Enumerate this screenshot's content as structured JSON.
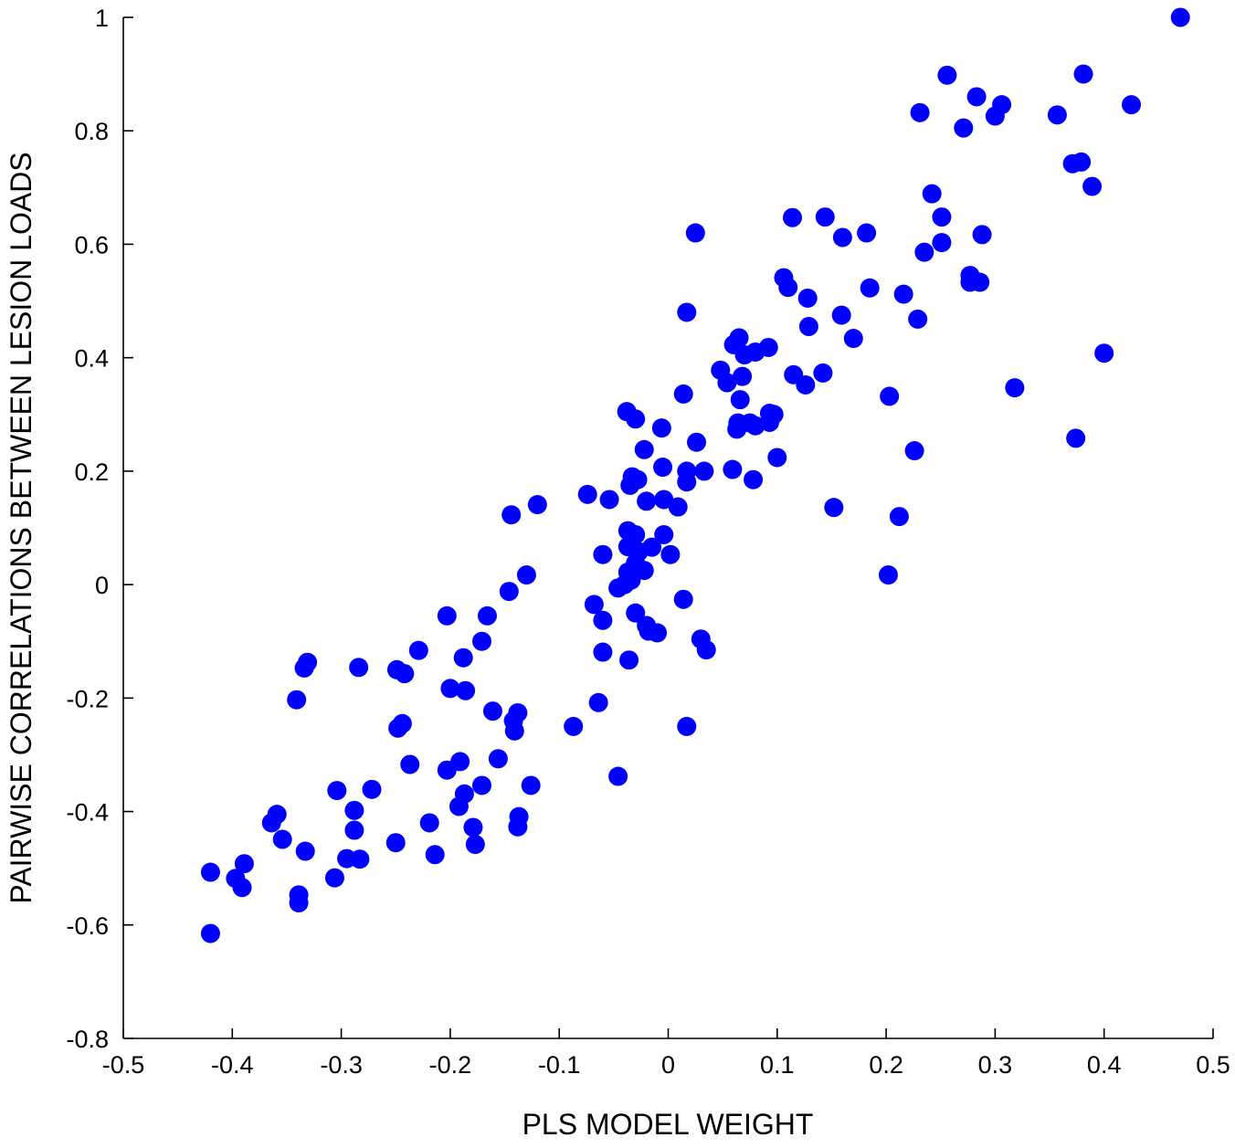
{
  "chart_data": {
    "type": "scatter",
    "xlabel": "PLS MODEL WEIGHT",
    "ylabel": "PAIRWISE CORRELATIONS BETWEEN LESION LOADS",
    "xlim": [
      -0.5,
      0.5
    ],
    "ylim": [
      -0.8,
      1
    ],
    "xticks": [
      -0.5,
      -0.4,
      -0.3,
      -0.2,
      -0.1,
      0,
      0.1,
      0.2,
      0.3,
      0.4,
      0.5
    ],
    "xtick_labels": [
      "-0.5",
      "-0.4",
      "-0.3",
      "-0.2",
      "-0.1",
      "0",
      "0.1",
      "0.2",
      "0.3",
      "0.4",
      "0.5"
    ],
    "yticks": [
      -0.8,
      -0.6,
      -0.4,
      -0.2,
      0,
      0.2,
      0.4,
      0.6,
      0.8,
      1
    ],
    "ytick_labels": [
      "-0.8",
      "-0.6",
      "-0.4",
      "-0.2",
      "0",
      "0.2",
      "0.4",
      "0.6",
      "0.8",
      "1"
    ],
    "grid": false,
    "marker_color": "#0000ff",
    "points": [
      [
        0.47,
        1.0
      ],
      [
        0.381,
        0.9
      ],
      [
        0.256,
        0.898
      ],
      [
        0.425,
        0.846
      ],
      [
        0.306,
        0.846
      ],
      [
        0.283,
        0.86
      ],
      [
        0.3,
        0.826
      ],
      [
        0.357,
        0.828
      ],
      [
        0.231,
        0.832
      ],
      [
        0.271,
        0.805
      ],
      [
        0.371,
        0.742
      ],
      [
        0.379,
        0.745
      ],
      [
        0.389,
        0.702
      ],
      [
        0.242,
        0.689
      ],
      [
        0.251,
        0.648
      ],
      [
        0.251,
        0.603
      ],
      [
        0.288,
        0.617
      ],
      [
        0.235,
        0.586
      ],
      [
        0.277,
        0.545
      ],
      [
        0.277,
        0.533
      ],
      [
        0.286,
        0.533
      ],
      [
        0.229,
        0.468
      ],
      [
        0.216,
        0.512
      ],
      [
        0.4,
        0.408
      ],
      [
        0.318,
        0.347
      ],
      [
        0.374,
        0.258
      ],
      [
        0.226,
        0.236
      ],
      [
        0.203,
        0.332
      ],
      [
        0.212,
        0.12
      ],
      [
        0.202,
        0.017
      ],
      [
        0.114,
        0.647
      ],
      [
        0.144,
        0.648
      ],
      [
        0.16,
        0.612
      ],
      [
        0.182,
        0.62
      ],
      [
        0.185,
        0.523
      ],
      [
        0.106,
        0.541
      ],
      [
        0.11,
        0.524
      ],
      [
        0.128,
        0.505
      ],
      [
        0.129,
        0.455
      ],
      [
        0.159,
        0.475
      ],
      [
        0.17,
        0.434
      ],
      [
        0.025,
        0.62
      ],
      [
        0.017,
        0.48
      ],
      [
        0.065,
        0.435
      ],
      [
        0.06,
        0.423
      ],
      [
        0.07,
        0.405
      ],
      [
        0.08,
        0.41
      ],
      [
        0.092,
        0.418
      ],
      [
        0.115,
        0.37
      ],
      [
        0.142,
        0.373
      ],
      [
        0.126,
        0.352
      ],
      [
        0.048,
        0.378
      ],
      [
        0.054,
        0.356
      ],
      [
        0.068,
        0.367
      ],
      [
        0.066,
        0.326
      ],
      [
        0.093,
        0.302
      ],
      [
        0.097,
        0.3
      ],
      [
        0.093,
        0.286
      ],
      [
        0.064,
        0.285
      ],
      [
        0.075,
        0.285
      ],
      [
        0.063,
        0.274
      ],
      [
        0.08,
        0.28
      ],
      [
        0.1,
        0.224
      ],
      [
        0.059,
        0.203
      ],
      [
        0.078,
        0.185
      ],
      [
        0.152,
        0.136
      ],
      [
        0.014,
        0.336
      ],
      [
        0.026,
        0.251
      ],
      [
        0.017,
        0.2
      ],
      [
        0.033,
        0.2
      ],
      [
        0.017,
        0.181
      ],
      [
        0.009,
        0.137
      ],
      [
        -0.006,
        0.276
      ],
      [
        -0.038,
        0.305
      ],
      [
        -0.03,
        0.292
      ],
      [
        -0.022,
        0.238
      ],
      [
        -0.005,
        0.207
      ],
      [
        -0.033,
        0.19
      ],
      [
        -0.028,
        0.185
      ],
      [
        -0.035,
        0.175
      ],
      [
        -0.02,
        0.147
      ],
      [
        -0.004,
        0.15
      ],
      [
        -0.054,
        0.15
      ],
      [
        -0.074,
        0.159
      ],
      [
        -0.12,
        0.141
      ],
      [
        -0.144,
        0.123
      ],
      [
        -0.037,
        0.095
      ],
      [
        -0.03,
        0.088
      ],
      [
        -0.004,
        0.088
      ],
      [
        -0.037,
        0.067
      ],
      [
        -0.015,
        0.066
      ],
      [
        -0.027,
        0.058
      ],
      [
        -0.06,
        0.053
      ],
      [
        0.002,
        0.053
      ],
      [
        -0.03,
        0.038
      ],
      [
        -0.037,
        0.022
      ],
      [
        -0.022,
        0.025
      ],
      [
        -0.034,
        0.008
      ],
      [
        -0.04,
        0.0
      ],
      [
        -0.046,
        -0.006
      ],
      [
        -0.13,
        0.017
      ],
      [
        -0.146,
        -0.012
      ],
      [
        -0.068,
        -0.035
      ],
      [
        -0.06,
        -0.063
      ],
      [
        -0.03,
        -0.05
      ],
      [
        -0.02,
        -0.072
      ],
      [
        -0.018,
        -0.082
      ],
      [
        -0.01,
        -0.085
      ],
      [
        0.014,
        -0.026
      ],
      [
        0.03,
        -0.096
      ],
      [
        0.035,
        -0.115
      ],
      [
        -0.06,
        -0.119
      ],
      [
        -0.036,
        -0.133
      ],
      [
        -0.064,
        -0.208
      ],
      [
        -0.087,
        -0.25
      ],
      [
        0.017,
        -0.25
      ],
      [
        -0.046,
        -0.338
      ],
      [
        -0.166,
        -0.055
      ],
      [
        -0.203,
        -0.055
      ],
      [
        -0.171,
        -0.1
      ],
      [
        -0.229,
        -0.116
      ],
      [
        -0.188,
        -0.129
      ],
      [
        -0.284,
        -0.146
      ],
      [
        -0.331,
        -0.137
      ],
      [
        -0.334,
        -0.147
      ],
      [
        -0.249,
        -0.15
      ],
      [
        -0.242,
        -0.157
      ],
      [
        -0.2,
        -0.183
      ],
      [
        -0.186,
        -0.187
      ],
      [
        -0.341,
        -0.203
      ],
      [
        -0.161,
        -0.223
      ],
      [
        -0.138,
        -0.226
      ],
      [
        -0.142,
        -0.24
      ],
      [
        -0.141,
        -0.258
      ],
      [
        -0.244,
        -0.245
      ],
      [
        -0.248,
        -0.253
      ],
      [
        -0.156,
        -0.307
      ],
      [
        -0.237,
        -0.317
      ],
      [
        -0.191,
        -0.312
      ],
      [
        -0.203,
        -0.327
      ],
      [
        -0.126,
        -0.354
      ],
      [
        -0.171,
        -0.354
      ],
      [
        -0.187,
        -0.369
      ],
      [
        -0.192,
        -0.391
      ],
      [
        -0.304,
        -0.363
      ],
      [
        -0.272,
        -0.361
      ],
      [
        -0.288,
        -0.398
      ],
      [
        -0.137,
        -0.409
      ],
      [
        -0.138,
        -0.427
      ],
      [
        -0.179,
        -0.428
      ],
      [
        -0.288,
        -0.433
      ],
      [
        -0.219,
        -0.42
      ],
      [
        -0.25,
        -0.455
      ],
      [
        -0.177,
        -0.458
      ],
      [
        -0.214,
        -0.476
      ],
      [
        -0.359,
        -0.405
      ],
      [
        -0.364,
        -0.42
      ],
      [
        -0.354,
        -0.449
      ],
      [
        -0.333,
        -0.47
      ],
      [
        -0.295,
        -0.483
      ],
      [
        -0.283,
        -0.484
      ],
      [
        -0.306,
        -0.517
      ],
      [
        -0.389,
        -0.492
      ],
      [
        -0.397,
        -0.518
      ],
      [
        -0.391,
        -0.534
      ],
      [
        -0.339,
        -0.547
      ],
      [
        -0.339,
        -0.561
      ],
      [
        -0.42,
        -0.507
      ],
      [
        -0.42,
        -0.615
      ]
    ]
  }
}
